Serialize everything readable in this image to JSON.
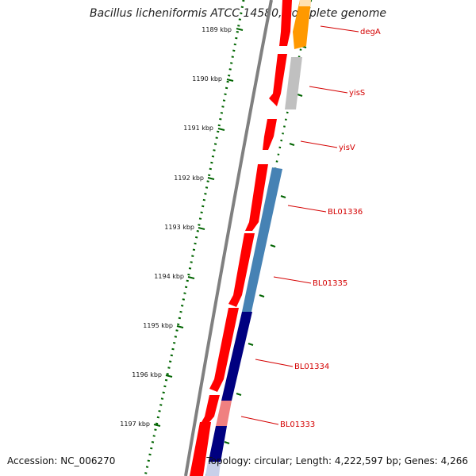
{
  "figure": {
    "title": "Bacillus licheniformis ATCC 14580, complete genome",
    "accession": "Accession: NC_006270",
    "topology": "Topology: circular; Length: 4,222,597 bp; Genes: 4,266"
  },
  "ruler": {
    "ticks": [
      {
        "label": "1189 kbp"
      },
      {
        "label": "1190 kbp"
      },
      {
        "label": "1191 kbp"
      },
      {
        "label": "1192 kbp"
      },
      {
        "label": "1193 kbp"
      },
      {
        "label": "1194 kbp"
      },
      {
        "label": "1195 kbp"
      },
      {
        "label": "1196 kbp"
      },
      {
        "label": "1197 kbp"
      }
    ]
  },
  "genes": [
    {
      "label": "degA",
      "strand_a_color": "#ff0000",
      "strand_b_color": "#ff9900"
    },
    {
      "label": "yisS",
      "strand_a_color": "#ff0000",
      "strand_b_color": "#c0c0c0"
    },
    {
      "label": "yisV",
      "strand_a_color": "#ff0000",
      "strand_b_color": ""
    },
    {
      "label": "BL01336",
      "strand_a_color": "#ff0000",
      "strand_b_color": "#4682b4"
    },
    {
      "label": "BL01335",
      "strand_a_color": "#ff0000",
      "strand_b_color": "#4682b4"
    },
    {
      "label": "BL01334",
      "strand_a_color": "#ff0000",
      "strand_b_color": "#000080"
    },
    {
      "label": "BL01333",
      "strand_a_color": "#ff0000",
      "strand_b_color": "#f08080"
    }
  ],
  "colors": {
    "backbone": "#808080",
    "tick": "#006400",
    "label_line": "#d40000"
  }
}
